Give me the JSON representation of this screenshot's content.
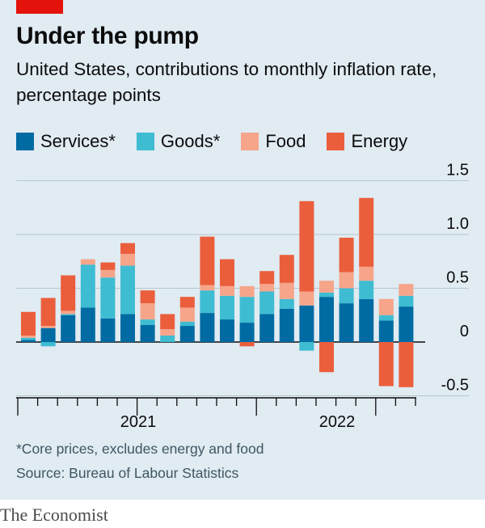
{
  "header": {
    "title": "Under the pump",
    "subtitle": "United States, contributions to monthly inflation rate, percentage points"
  },
  "legend": [
    {
      "label": "Services*",
      "color": "#006ba2"
    },
    {
      "label": "Goods*",
      "color": "#3ebcd2"
    },
    {
      "label": "Food",
      "color": "#f6a58a"
    },
    {
      "label": "Energy",
      "color": "#eb5e3c"
    }
  ],
  "footer": {
    "footnote": "*Core prices, excludes energy and food",
    "source": "Source: Bureau of Labour Statistics",
    "brand": "The Economist"
  },
  "chart_data": {
    "type": "bar",
    "stacked": true,
    "title": "Under the pump",
    "subtitle": "United States, contributions to monthly inflation rate, percentage points",
    "x_labels": [
      "2021",
      "2022"
    ],
    "y_ticks": [
      1.5,
      1.0,
      0.5,
      0,
      -0.5
    ],
    "y_tick_labels": [
      "1.5",
      "1.0",
      "0.5",
      "0",
      "-0.5"
    ],
    "ylim": [
      -0.5,
      1.5
    ],
    "grid": true,
    "legend_position": "top",
    "series": [
      {
        "name": "Services*",
        "color": "#006ba2",
        "values": [
          0.02,
          0.13,
          0.25,
          0.32,
          0.22,
          0.26,
          0.16,
          0.0,
          0.15,
          0.27,
          0.21,
          0.18,
          0.26,
          0.31,
          0.34,
          0.42,
          0.36,
          0.4,
          0.2,
          0.33
        ]
      },
      {
        "name": "Goods*",
        "color": "#3ebcd2",
        "values": [
          0.02,
          -0.04,
          0.01,
          0.4,
          0.38,
          0.45,
          0.05,
          0.06,
          0.04,
          0.21,
          0.22,
          0.24,
          0.21,
          0.09,
          -0.08,
          0.04,
          0.14,
          0.17,
          0.05,
          0.1
        ]
      },
      {
        "name": "Food",
        "color": "#f6a58a",
        "values": [
          0.02,
          0.02,
          0.03,
          0.05,
          0.07,
          0.11,
          0.15,
          0.06,
          0.13,
          0.05,
          0.09,
          0.1,
          0.07,
          0.15,
          0.13,
          0.11,
          0.15,
          0.13,
          0.15,
          0.11
        ]
      },
      {
        "name": "Energy",
        "color": "#eb5e3c",
        "values": [
          0.22,
          0.26,
          0.33,
          0.0,
          0.07,
          0.1,
          0.12,
          0.14,
          0.1,
          0.45,
          0.25,
          0.0,
          0.12,
          0.26,
          0.84,
          0.0,
          0.32,
          0.64,
          0.0,
          0.0
        ],
        "negative_values": [
          0,
          0,
          0,
          0,
          0,
          0,
          0,
          0,
          0,
          0,
          0,
          -0.04,
          0,
          0,
          0,
          -0.28,
          0,
          0,
          -0.41,
          -0.42
        ]
      }
    ]
  }
}
